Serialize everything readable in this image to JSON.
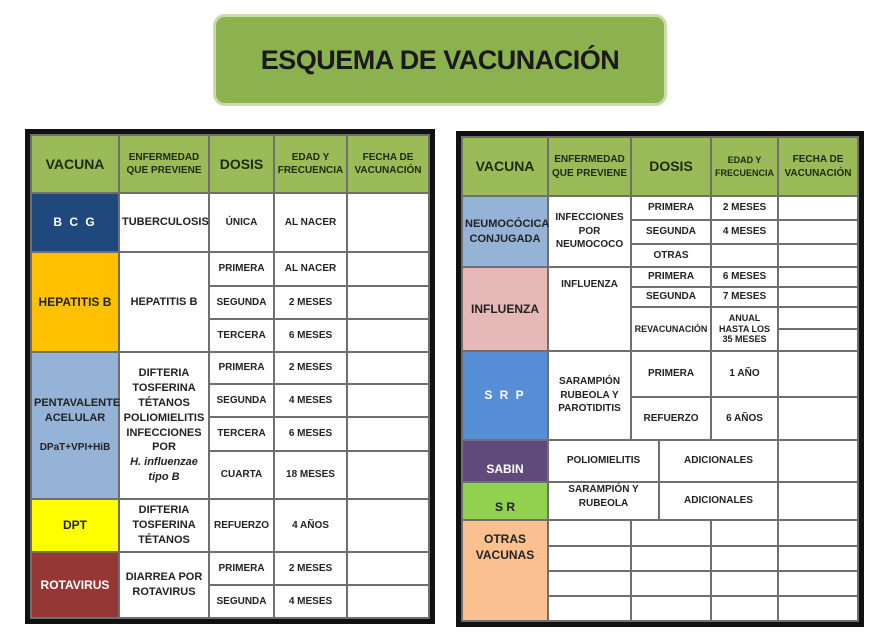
{
  "title": "ESQUEMA DE VACUNACIÓN",
  "headers": {
    "vacuna": "VACUNA",
    "enfermedad": "ENFERMEDAD QUE PREVIENE",
    "dosis": "DOSIS",
    "edad": "EDAD Y FRECUENCIA",
    "fecha": "FECHA DE VACUNACIÓN"
  },
  "left": {
    "bcg": {
      "name": "B C G",
      "color": "#1f497d",
      "disease": "TUBERCULOSIS",
      "doses": [
        {
          "dose": "ÚNICA",
          "age": "AL NACER"
        }
      ]
    },
    "hepb": {
      "name": "HEPATITIS B",
      "color": "#ffc000",
      "disease": "HEPATITIS B",
      "doses": [
        {
          "dose": "PRIMERA",
          "age": "AL NACER"
        },
        {
          "dose": "SEGUNDA",
          "age": "2 MESES"
        },
        {
          "dose": "TERCERA",
          "age": "6 MESES"
        }
      ]
    },
    "penta": {
      "name": "PENTAVALENTE ACELULAR",
      "sub": "DPaT+VPI+HiB",
      "color": "#95b3d7",
      "disease": "DIFTERIA TOSFERINA TÉTANOS POLIOMIELITIS INFECCIONES POR",
      "disease_italic": "H. influenzae tipo B",
      "doses": [
        {
          "dose": "PRIMERA",
          "age": "2 MESES"
        },
        {
          "dose": "SEGUNDA",
          "age": "4 MESES"
        },
        {
          "dose": "TERCERA",
          "age": "6 MESES"
        },
        {
          "dose": "CUARTA",
          "age": "18 MESES"
        }
      ]
    },
    "dpt": {
      "name": "DPT",
      "color": "#ffff00",
      "disease": "DIFTERIA TOSFERINA TÉTANOS",
      "doses": [
        {
          "dose": "REFUERZO",
          "age": "4 AÑOS"
        }
      ]
    },
    "rota": {
      "name": "ROTAVIRUS",
      "color": "#953735",
      "disease": "DIARREA POR ROTAVIRUS",
      "doses": [
        {
          "dose": "PRIMERA",
          "age": "2 MESES"
        },
        {
          "dose": "SEGUNDA",
          "age": "4 MESES"
        }
      ]
    }
  },
  "right": {
    "neumo": {
      "name": "NEUMOCÓCICA CONJUGADA",
      "color": "#95b3d7",
      "disease": "INFECCIONES POR NEUMOCOCO",
      "doses": [
        {
          "dose": "PRIMERA",
          "age": "2 MESES"
        },
        {
          "dose": "SEGUNDA",
          "age": "4 MESES"
        },
        {
          "dose": "OTRAS",
          "age": ""
        }
      ]
    },
    "flu": {
      "name": "INFLUENZA",
      "color": "#e6b9b8",
      "disease": "INFLUENZA",
      "doses": [
        {
          "dose": "PRIMERA",
          "age": "6 MESES"
        },
        {
          "dose": "SEGUNDA",
          "age": "7 MESES"
        },
        {
          "dose": "REVACUNACIÓN",
          "age": "ANUAL HASTA LOS 35 MESES"
        }
      ]
    },
    "srp": {
      "name": "S R P",
      "color": "#558ed5",
      "disease": "SARAMPIÓN RUBEOLA Y PAROTIDITIS",
      "doses": [
        {
          "dose": "PRIMERA",
          "age": "1 AÑO"
        },
        {
          "dose": "REFUERZO",
          "age": "6 AÑOS"
        }
      ]
    },
    "sabin": {
      "name": "SABIN",
      "color": "#604a7b",
      "disease": "POLIOMIELITIS",
      "dose": "ADICIONALES"
    },
    "sr": {
      "name": "S R",
      "color": "#92d050",
      "disease": "SARAMPIÓN Y RUBEOLA",
      "dose": "ADICIONALES"
    },
    "otras": {
      "name": "OTRAS VACUNAS",
      "color": "#fac090"
    }
  }
}
